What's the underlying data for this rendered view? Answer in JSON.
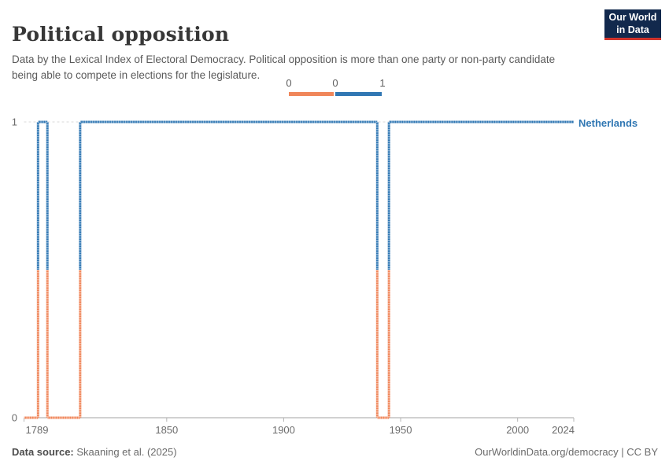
{
  "header": {
    "title": "Political opposition",
    "subtitle": "Data by the Lexical Index of Electoral Democracy. Political opposition is more than one party or non-party candidate being able to compete in elections for the legislature."
  },
  "logo": {
    "line1": "Our World",
    "line2": "in Data",
    "bg_color": "#12294d",
    "accent_color": "#d0342c"
  },
  "legend": {
    "labels": [
      "0",
      "0",
      "1"
    ],
    "segments": [
      {
        "value": 0,
        "color": "#f0865a"
      },
      {
        "value": 1,
        "color": "#3077b3"
      }
    ]
  },
  "chart_data": {
    "type": "line",
    "title": "Political opposition",
    "entity": "Netherlands",
    "entity_color": "#3077b3",
    "xlim": [
      1789,
      2024
    ],
    "ylim": [
      0,
      1
    ],
    "x_ticks": [
      1789,
      1850,
      1900,
      1950,
      2000,
      2024
    ],
    "y_ticks": [
      0,
      1
    ],
    "grid": "horizontal-dashed",
    "legend_position": "top-center",
    "value_colors": {
      "0": "#f0865a",
      "1": "#3077b3"
    },
    "steps": [
      {
        "from": 1789,
        "to": 1794,
        "value": 0
      },
      {
        "from": 1795,
        "to": 1798,
        "value": 1
      },
      {
        "from": 1799,
        "to": 1812,
        "value": 0
      },
      {
        "from": 1813,
        "to": 1939,
        "value": 1
      },
      {
        "from": 1940,
        "to": 1944,
        "value": 0
      },
      {
        "from": 1945,
        "to": 2024,
        "value": 1
      }
    ]
  },
  "footer": {
    "source_label": "Data source:",
    "source_value": " Skaaning et al. (2025)",
    "right_text": "OurWorldinData.org/democracy | CC BY"
  }
}
